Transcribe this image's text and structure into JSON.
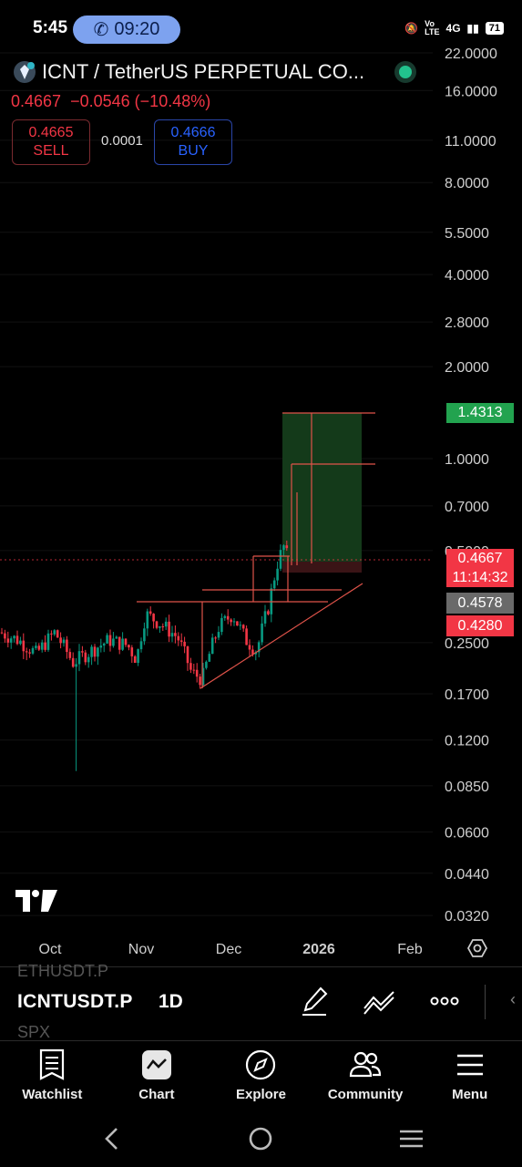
{
  "status": {
    "time": "5:45",
    "call_timer": "09:20",
    "network": "4G",
    "battery": "71"
  },
  "header": {
    "title": "ICNT / TetherUS PERPETUAL CO...",
    "price": "0.4667",
    "change": "−0.0546",
    "change_pct": "(−10.48%)",
    "sell": {
      "price": "0.4665",
      "label": "SELL"
    },
    "spread": "0.0001",
    "buy": {
      "price": "0.4666",
      "label": "BUY"
    }
  },
  "chart_data": {
    "type": "candlestick",
    "scale": "log",
    "y_ticks": [
      "22.0000",
      "16.0000",
      "11.0000",
      "8.0000",
      "5.5000",
      "4.0000",
      "2.8000",
      "2.0000",
      "1.0000",
      "0.7000",
      "0.5000",
      "0.2500",
      "0.1700",
      "0.1200",
      "0.0850",
      "0.0600",
      "0.0440",
      "0.0320"
    ],
    "x_ticks": [
      "Oct",
      "Nov",
      "Dec",
      "2026",
      "Feb"
    ],
    "price_badges": {
      "target": "1.4313",
      "last": "0.4667",
      "countdown": "11:14:32",
      "level_1": "0.4578",
      "level_2": "0.4280"
    },
    "colors": {
      "up": "#089981",
      "down": "#f23645",
      "target_zone": "#143a1a",
      "stop_zone": "#3a1416",
      "trendline": "#e0534a"
    }
  },
  "toolbar": {
    "ghost_prev": "ETHUSDT.P",
    "symbol": "ICNTUSDT.P",
    "interval": "1D",
    "ghost_next": "SPX"
  },
  "nav": [
    {
      "label": "Watchlist",
      "icon": "watchlist-icon"
    },
    {
      "label": "Chart",
      "icon": "chart-icon"
    },
    {
      "label": "Explore",
      "icon": "compass-icon"
    },
    {
      "label": "Community",
      "icon": "community-icon"
    },
    {
      "label": "Menu",
      "icon": "menu-icon"
    }
  ]
}
